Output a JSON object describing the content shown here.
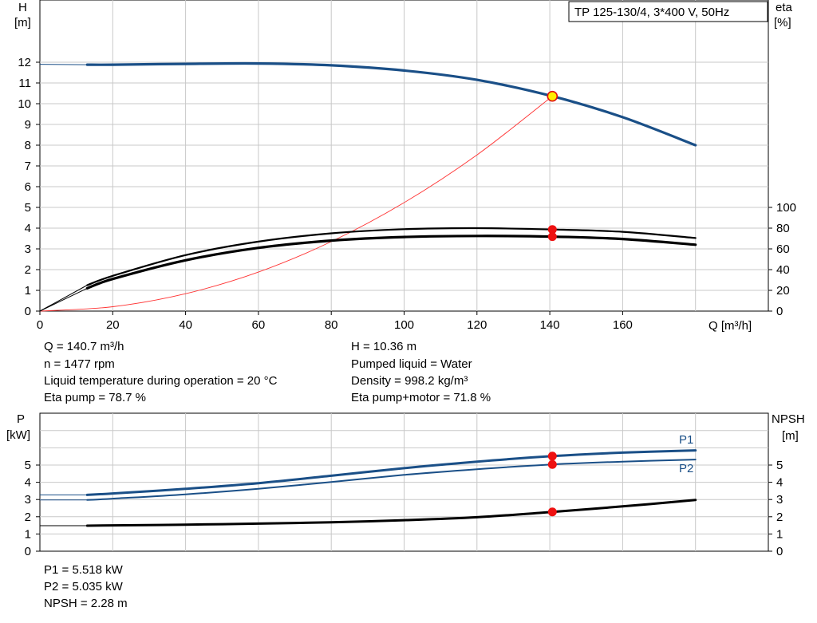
{
  "chart_data": [
    {
      "type": "line",
      "panel": "pump-curve",
      "title": "TP 125-130/4, 3*400 V, 50Hz",
      "xlabel": "Q [m³/h]",
      "ylabel_left": "H",
      "ylabel_left_unit": "[m]",
      "ylabel_right": "eta",
      "ylabel_right_unit": "[%]",
      "xlim": [
        0,
        200
      ],
      "ylim_left": [
        0,
        14.5
      ],
      "ylim_right": [
        0,
        100
      ],
      "grid": true,
      "x_ticks": [
        "0",
        "20",
        "40",
        "60",
        "80",
        "100",
        "120",
        "140",
        "160"
      ],
      "y_ticks_left": [
        "0",
        "1",
        "2",
        "3",
        "4",
        "5",
        "6",
        "7",
        "8",
        "9",
        "10",
        "11",
        "12"
      ],
      "y_ticks_right": [
        "0",
        "20",
        "40",
        "60",
        "80",
        "100"
      ],
      "colors": {
        "head": "#1a4f87",
        "eta": "#000000",
        "system": "#ff3333",
        "grid": "#c8c8c8",
        "marker": "#ee1111",
        "duty": "#ffee00"
      },
      "series": [
        {
          "key": "head",
          "x": [
            0,
            13,
            20,
            40,
            60,
            80,
            100,
            120,
            140.7,
            160,
            180
          ],
          "y": [
            11.9,
            11.88,
            11.88,
            11.92,
            11.94,
            11.85,
            11.6,
            11.15,
            10.36,
            9.35,
            8.0
          ]
        },
        {
          "key": "eta_pump",
          "x": [
            0,
            13,
            20,
            40,
            60,
            80,
            100,
            120,
            140.7,
            160,
            180
          ],
          "y": [
            0,
            25,
            34,
            54,
            67,
            75,
            79,
            80,
            78.7,
            76.5,
            70.5
          ]
        },
        {
          "key": "eta_pump_motor",
          "x": [
            0,
            13,
            20,
            40,
            60,
            80,
            100,
            120,
            140.7,
            160,
            180
          ],
          "y": [
            0,
            22,
            31,
            49,
            61,
            68,
            71.5,
            72.5,
            71.8,
            69.5,
            64
          ]
        },
        {
          "key": "system_curve",
          "x": [
            0,
            20,
            40,
            60,
            80,
            100,
            120,
            140.7
          ],
          "y": [
            0,
            0.21,
            0.84,
            1.88,
            3.35,
            5.23,
            7.53,
            10.36
          ]
        }
      ],
      "duty_point": {
        "x": 140.7,
        "head": 10.36,
        "eta_pump": 78.7,
        "eta_pump_motor": 71.8
      },
      "readouts": {
        "left": [
          "Q = 140.7 m³/h",
          "n = 1477 rpm",
          "Liquid temperature during operation = 20 °C",
          "Eta pump = 78.7 %"
        ],
        "right": [
          "H = 10.36 m",
          "Pumped liquid = Water",
          "Density = 998.2 kg/m³",
          "Eta pump+motor = 71.8 %"
        ]
      }
    },
    {
      "type": "line",
      "panel": "power-npsh",
      "ylabel_left": "P",
      "ylabel_left_unit": "[kW]",
      "ylabel_right": "NPSH",
      "ylabel_right_unit": "[m]",
      "xlim": [
        0,
        200
      ],
      "ylim": [
        0,
        7
      ],
      "grid": true,
      "y_ticks_left": [
        "0",
        "1",
        "2",
        "3",
        "4",
        "5"
      ],
      "y_ticks_right": [
        "0",
        "1",
        "2",
        "3",
        "4",
        "5"
      ],
      "series": [
        {
          "key": "P1",
          "name": "P1",
          "x": [
            0,
            13,
            20,
            40,
            60,
            80,
            100,
            120,
            140.7,
            160,
            180
          ],
          "y": [
            3.27,
            3.27,
            3.35,
            3.62,
            3.95,
            4.38,
            4.82,
            5.2,
            5.518,
            5.72,
            5.85
          ]
        },
        {
          "key": "P2",
          "name": "P2",
          "x": [
            0,
            13,
            20,
            40,
            60,
            80,
            100,
            120,
            140.7,
            160,
            180
          ],
          "y": [
            2.97,
            2.97,
            3.05,
            3.3,
            3.62,
            4.02,
            4.43,
            4.76,
            5.035,
            5.2,
            5.32
          ]
        },
        {
          "key": "NPSH",
          "x": [
            0,
            13,
            20,
            40,
            60,
            80,
            100,
            120,
            140.7,
            160,
            180
          ],
          "y": [
            1.48,
            1.48,
            1.5,
            1.54,
            1.6,
            1.68,
            1.8,
            1.97,
            2.28,
            2.6,
            2.97
          ]
        }
      ],
      "readouts": [
        "P1 = 5.518 kW",
        "P2 = 5.035 kW",
        "NPSH = 2.28 m"
      ]
    }
  ]
}
